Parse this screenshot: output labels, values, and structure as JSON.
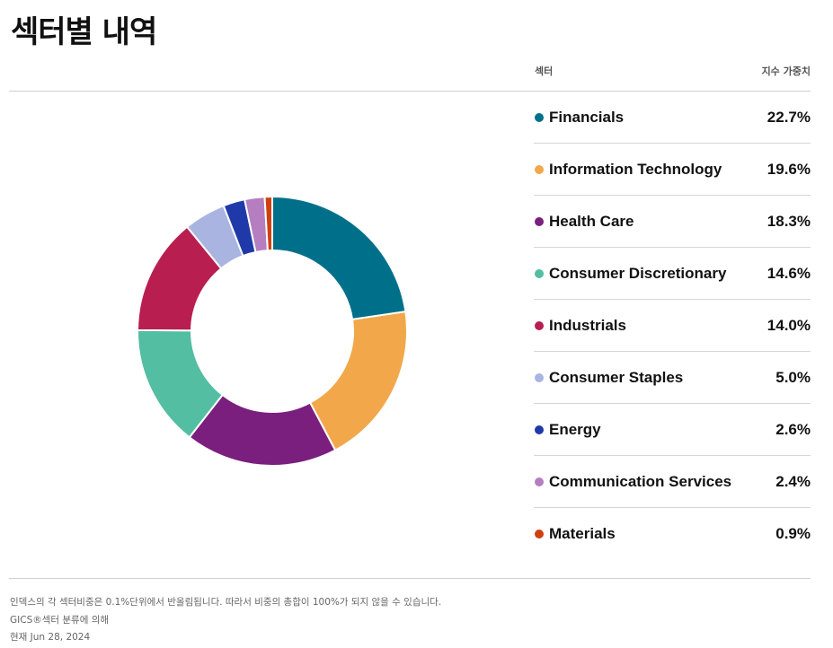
{
  "header": {
    "title": "섹터별 내역",
    "col_sector": "섹터",
    "col_weight": "지수 가중치"
  },
  "chart_data": {
    "type": "pie",
    "donut": true,
    "categories": [
      "Financials",
      "Information Technology",
      "Health Care",
      "Consumer Discretionary",
      "Industrials",
      "Consumer Staples",
      "Energy",
      "Communication Services",
      "Materials"
    ],
    "values": [
      22.7,
      19.6,
      18.3,
      14.6,
      14.0,
      5.0,
      2.6,
      2.4,
      0.9
    ],
    "labels": [
      "22.7%",
      "19.6%",
      "18.3%",
      "14.6%",
      "14.0%",
      "5.0%",
      "2.6%",
      "2.4%",
      "0.9%"
    ],
    "colors": [
      "#00708a",
      "#f2a74b",
      "#7a1f7e",
      "#53bea2",
      "#b81e50",
      "#a9b4e0",
      "#1f3aa8",
      "#b57ec1",
      "#cf4011"
    ]
  },
  "footer": {
    "note1": "인덱스의 각 섹터비중은 0.1%단위에서 반올림됩니다. 따라서 비중의 총합이 100%가 되지 않을 수 있습니다.",
    "note2": "GICS®섹터 분류에 의해",
    "note3": "현재 Jun 28, 2024"
  }
}
